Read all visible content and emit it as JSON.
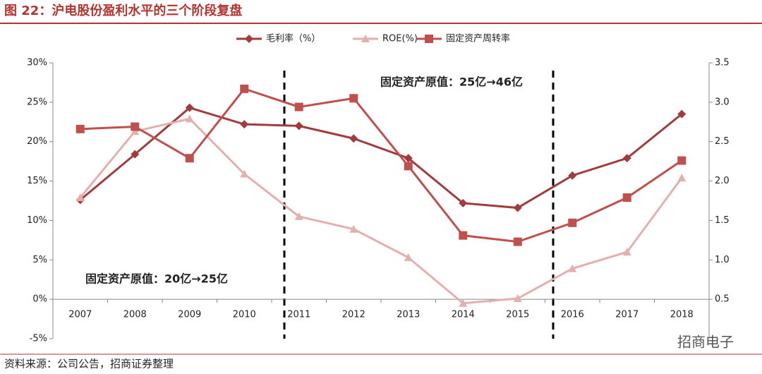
{
  "title": "图 22：沪电股份盈利水平的三个阶段复盘",
  "source": "资料来源：公司公告，招商证券整理",
  "watermark": "招商电子",
  "chart_data": {
    "type": "line",
    "categories": [
      "2007",
      "2008",
      "2009",
      "2010",
      "2011",
      "2012",
      "2013",
      "2014",
      "2015",
      "2016",
      "2017",
      "2018"
    ],
    "series": [
      {
        "name": "毛利率（%）",
        "color": "#a23b3b",
        "marker": "diamond",
        "values": [
          12.6,
          18.4,
          24.3,
          22.2,
          22.0,
          20.4,
          17.9,
          12.2,
          11.6,
          15.7,
          17.9,
          23.5
        ]
      },
      {
        "name": "ROE(%)",
        "color": "#e3b0b0",
        "marker": "triangle",
        "values": [
          12.9,
          21.3,
          22.9,
          15.9,
          10.5,
          8.9,
          5.3,
          -0.5,
          0.1,
          3.9,
          6.0,
          15.4
        ]
      },
      {
        "name": "固定资产周转率",
        "color": "#c0504d",
        "marker": "square",
        "axis": "y2",
        "values": [
          2.66,
          2.69,
          2.29,
          3.17,
          2.94,
          3.05,
          2.19,
          1.31,
          1.23,
          1.47,
          1.79,
          2.26
        ]
      }
    ],
    "ylim": [
      -5,
      30
    ],
    "yticks": [
      {
        "value": -5,
        "label": "-5%"
      },
      {
        "value": 0,
        "label": "0%"
      },
      {
        "value": 5,
        "label": "5%"
      },
      {
        "value": 10,
        "label": "10%"
      },
      {
        "value": 15,
        "label": "15%"
      },
      {
        "value": 20,
        "label": "20%"
      },
      {
        "value": 25,
        "label": "25%"
      },
      {
        "value": 30,
        "label": "30%"
      }
    ],
    "y2lim": [
      0,
      3.5
    ],
    "y2ticks": [
      0.5,
      {
        "value": 1,
        "label": "1.0"
      },
      1.5,
      {
        "value": 2,
        "label": "2.0"
      },
      2.5,
      {
        "value": 3,
        "label": "3.0"
      },
      3.5
    ],
    "annotations": [
      "固定资产原值：25亿→46亿",
      "固定资产原值：20亿→25亿"
    ],
    "legend": "top"
  }
}
